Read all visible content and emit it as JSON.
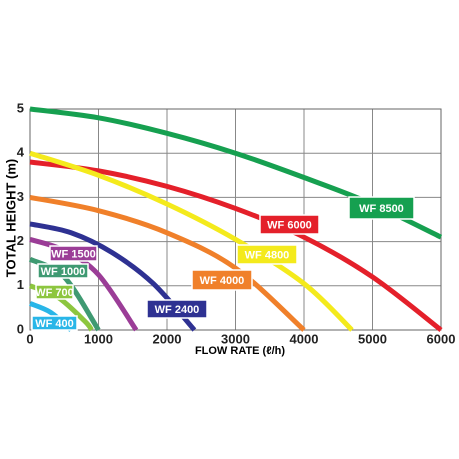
{
  "chart_data": {
    "type": "line",
    "xlabel": "FLOW RATE (ℓ/h)",
    "ylabel": "TOTAL HEIGHT (m)",
    "xlim": [
      0,
      6000
    ],
    "ylim": [
      0,
      5
    ],
    "xticks": [
      0,
      1000,
      2000,
      3000,
      4000,
      5000,
      6000
    ],
    "yticks": [
      0,
      1,
      2,
      3,
      4,
      5
    ],
    "grid": true,
    "series": [
      {
        "name": "WF 8500",
        "color": "#16a050",
        "x": [
          0,
          1000,
          2000,
          3000,
          4000,
          5000,
          6000
        ],
        "values": [
          5.0,
          4.8,
          4.45,
          4.0,
          3.45,
          2.85,
          2.1
        ]
      },
      {
        "name": "WF 6000",
        "color": "#e4202a",
        "x": [
          0,
          1000,
          2000,
          3000,
          4000,
          5000,
          6000
        ],
        "values": [
          3.8,
          3.6,
          3.25,
          2.75,
          2.1,
          1.2,
          0
        ]
      },
      {
        "name": "WF 4800",
        "color": "#f4ea1c",
        "x": [
          0,
          1000,
          2000,
          3000,
          4000,
          4700
        ],
        "values": [
          4.0,
          3.5,
          2.85,
          2.05,
          1.05,
          0
        ]
      },
      {
        "name": "WF 4000",
        "color": "#f0802a",
        "x": [
          0,
          1000,
          2000,
          3000,
          4000
        ],
        "values": [
          3.0,
          2.7,
          2.2,
          1.4,
          0
        ]
      },
      {
        "name": "WF 2400",
        "color": "#2e3192",
        "x": [
          0,
          600,
          1200,
          1800,
          2400
        ],
        "values": [
          2.4,
          2.2,
          1.75,
          1.05,
          0
        ]
      },
      {
        "name": "WF 1500",
        "color": "#9b3d97",
        "x": [
          0,
          500,
          1000,
          1550
        ],
        "values": [
          2.05,
          1.8,
          1.25,
          0
        ]
      },
      {
        "name": "WF 1000",
        "color": "#3f9a72",
        "x": [
          0,
          500,
          1000
        ],
        "values": [
          1.6,
          1.2,
          0
        ]
      },
      {
        "name": "WF 700",
        "color": "#8dc63f",
        "x": [
          0,
          400,
          800,
          900
        ],
        "values": [
          1.0,
          0.75,
          0.2,
          0
        ]
      },
      {
        "name": "WF 400",
        "color": "#29b6e8",
        "x": [
          0,
          300,
          600
        ],
        "values": [
          0.6,
          0.4,
          0
        ]
      }
    ]
  }
}
